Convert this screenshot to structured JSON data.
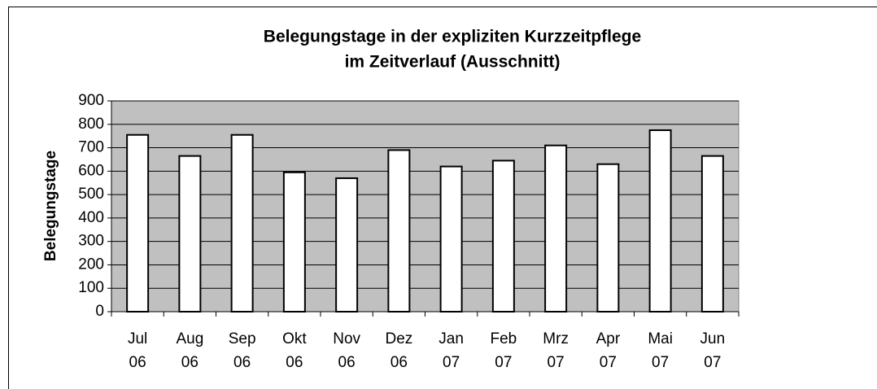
{
  "chart_data": {
    "type": "bar",
    "title": [
      "Belegungstage in der expliziten Kurzzeitpflege",
      "im Zeitverlauf (Ausschnitt)"
    ],
    "y_label": "Belegungstage",
    "categories": [
      [
        "Jul",
        "06"
      ],
      [
        "Aug",
        "06"
      ],
      [
        "Sep",
        "06"
      ],
      [
        "Okt",
        "06"
      ],
      [
        "Nov",
        "06"
      ],
      [
        "Dez",
        "06"
      ],
      [
        "Jan",
        "07"
      ],
      [
        "Feb",
        "07"
      ],
      [
        "Mrz",
        "07"
      ],
      [
        "Apr",
        "07"
      ],
      [
        "Mai",
        "07"
      ],
      [
        "Jun",
        "07"
      ]
    ],
    "values": [
      755,
      665,
      755,
      595,
      570,
      690,
      620,
      645,
      710,
      630,
      775,
      665
    ],
    "color": "#ffffff",
    "plot_background": "#c0c0c0",
    "ylim": [
      0,
      900
    ],
    "yticks": [
      0,
      100,
      200,
      300,
      400,
      500,
      600,
      700,
      800,
      900
    ],
    "grid": true
  }
}
